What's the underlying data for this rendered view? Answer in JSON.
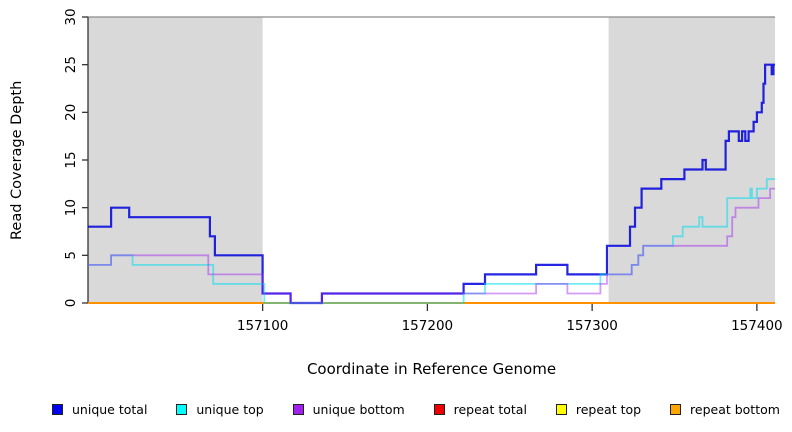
{
  "chart_data": {
    "type": "line",
    "interpolation": "step-after",
    "title": "",
    "xlabel": "Coordinate in Reference Genome",
    "ylabel": "Read Coverage Depth",
    "xlim": [
      156994,
      157411
    ],
    "ylim": [
      0,
      30
    ],
    "x_ticks": [
      157100,
      157200,
      157300,
      157400
    ],
    "y_ticks": [
      0,
      5,
      10,
      15,
      20,
      25,
      30
    ],
    "grid": false,
    "legend_position": "bottom",
    "band_color": "#d9d9d9",
    "top_border_color": "#8a8a8a",
    "axis_color": "#333333",
    "tick_label_color": "#000000",
    "shaded_bands_x": [
      [
        156994,
        157100
      ],
      [
        157310,
        157411
      ]
    ],
    "series": [
      {
        "name": "unique total",
        "legend_fill": "#0000f0",
        "stroke": "#0000dd",
        "opacity": 0.85,
        "width": 2.2,
        "draw_order": 4,
        "points": [
          [
            156994,
            8
          ],
          [
            157008,
            10
          ],
          [
            157019,
            9
          ],
          [
            157068,
            7
          ],
          [
            157071,
            5
          ],
          [
            157100,
            1
          ],
          [
            157117,
            0
          ],
          [
            157136,
            1
          ],
          [
            157222,
            2
          ],
          [
            157235,
            3
          ],
          [
            157266,
            4
          ],
          [
            157285,
            3
          ],
          [
            157309,
            6
          ],
          [
            157323,
            8
          ],
          [
            157326,
            10
          ],
          [
            157330,
            12
          ],
          [
            157342,
            13
          ],
          [
            157356,
            14
          ],
          [
            157367,
            15
          ],
          [
            157369,
            14
          ],
          [
            157381,
            17
          ],
          [
            157383,
            18
          ],
          [
            157389,
            17
          ],
          [
            157391,
            18
          ],
          [
            157393,
            17
          ],
          [
            157395,
            18
          ],
          [
            157398,
            19
          ],
          [
            157400,
            20
          ],
          [
            157403,
            21
          ],
          [
            157404,
            23
          ],
          [
            157405,
            25
          ],
          [
            157409,
            24
          ],
          [
            157410,
            25
          ]
        ]
      },
      {
        "name": "unique top",
        "legend_fill": "#00ffff",
        "stroke": "#00dcec",
        "opacity": 0.55,
        "width": 1.8,
        "draw_order": 5,
        "points": [
          [
            156994,
            4
          ],
          [
            157008,
            5
          ],
          [
            157021,
            4
          ],
          [
            157070,
            2
          ],
          [
            157101,
            0
          ],
          [
            157222,
            1
          ],
          [
            157235,
            2
          ],
          [
            157305,
            3
          ],
          [
            157324,
            4
          ],
          [
            157328,
            5
          ],
          [
            157331,
            6
          ],
          [
            157349,
            7
          ],
          [
            157355,
            8
          ],
          [
            157365,
            9
          ],
          [
            157367,
            8
          ],
          [
            157382,
            11
          ],
          [
            157396,
            12
          ],
          [
            157397,
            11
          ],
          [
            157400,
            12
          ],
          [
            157406,
            13
          ]
        ]
      },
      {
        "name": "unique bottom",
        "legend_fill": "#a020f0",
        "stroke": "#a020f0",
        "opacity": 0.45,
        "width": 1.8,
        "draw_order": 6,
        "points": [
          [
            156994,
            4
          ],
          [
            157008,
            5
          ],
          [
            157067,
            3
          ],
          [
            157100,
            1
          ],
          [
            157117,
            0
          ],
          [
            157136,
            1
          ],
          [
            157266,
            2
          ],
          [
            157285,
            1
          ],
          [
            157305,
            2
          ],
          [
            157309,
            3
          ],
          [
            157324,
            4
          ],
          [
            157328,
            5
          ],
          [
            157331,
            6
          ],
          [
            157382,
            7
          ],
          [
            157385,
            9
          ],
          [
            157387,
            10
          ],
          [
            157401,
            11
          ],
          [
            157408,
            12
          ]
        ]
      },
      {
        "name": "repeat total",
        "legend_fill": "#ee0000",
        "stroke": "#ee0000",
        "opacity": 1,
        "width": 1.8,
        "draw_order": 1,
        "points": [
          [
            156994,
            0
          ]
        ]
      },
      {
        "name": "repeat top",
        "legend_fill": "#ffff00",
        "stroke": "#ffff00",
        "opacity": 1,
        "width": 1.8,
        "draw_order": 2,
        "points": [
          [
            156994,
            0
          ]
        ]
      },
      {
        "name": "repeat bottom",
        "legend_fill": "#ffa500",
        "stroke": "#ff9000",
        "opacity": 1,
        "width": 2,
        "draw_order": 3,
        "points": [
          [
            156994,
            0
          ]
        ]
      }
    ]
  }
}
